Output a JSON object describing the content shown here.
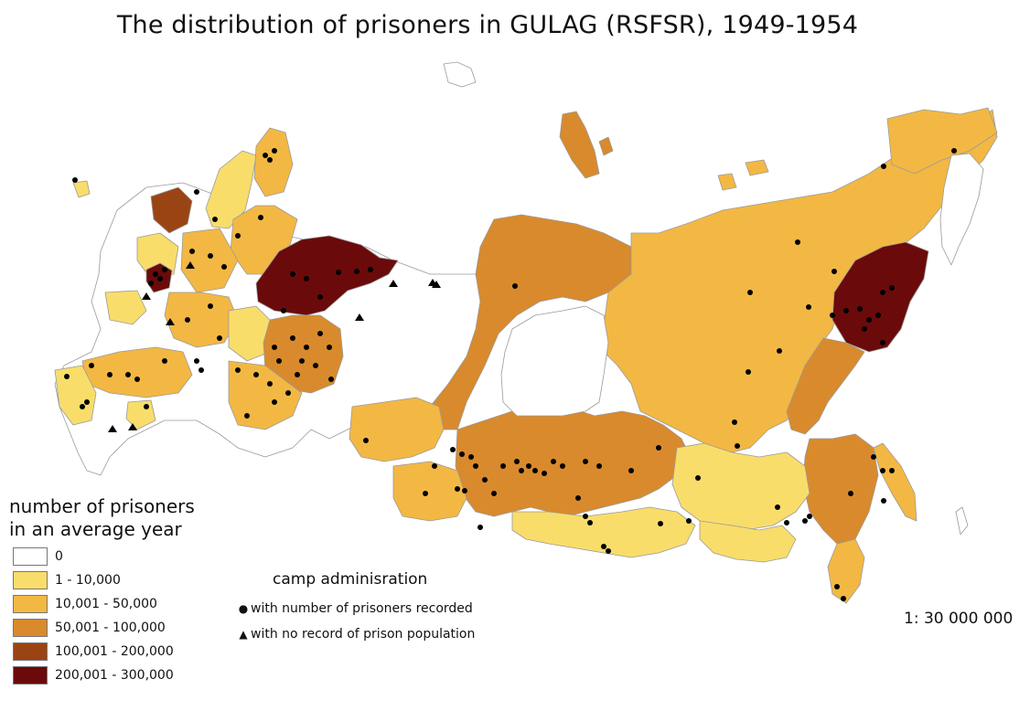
{
  "title": "The distribution of prisoners in GULAG (RSFSR), 1949-1954",
  "legend": {
    "heading_line1": "number of prisoners",
    "heading_line2": "in an average year",
    "classes": [
      {
        "label": "0",
        "color": "#ffffff"
      },
      {
        "label": "1 - 10,000",
        "color": "#f9dd6b"
      },
      {
        "label": "10,001 - 50,000",
        "color": "#f3b843"
      },
      {
        "label": "50,001 - 100,000",
        "color": "#d98a2c"
      },
      {
        "label": "100,001 - 200,000",
        "color": "#9a4414"
      },
      {
        "label": "200,001 - 300,000",
        "color": "#6b0a0a"
      }
    ]
  },
  "camps": {
    "heading": "camp adminisration",
    "recorded": "with number of prisoners recorded",
    "unrecorded": "with no record of prison population"
  },
  "scale": "1: 30 000 000"
}
